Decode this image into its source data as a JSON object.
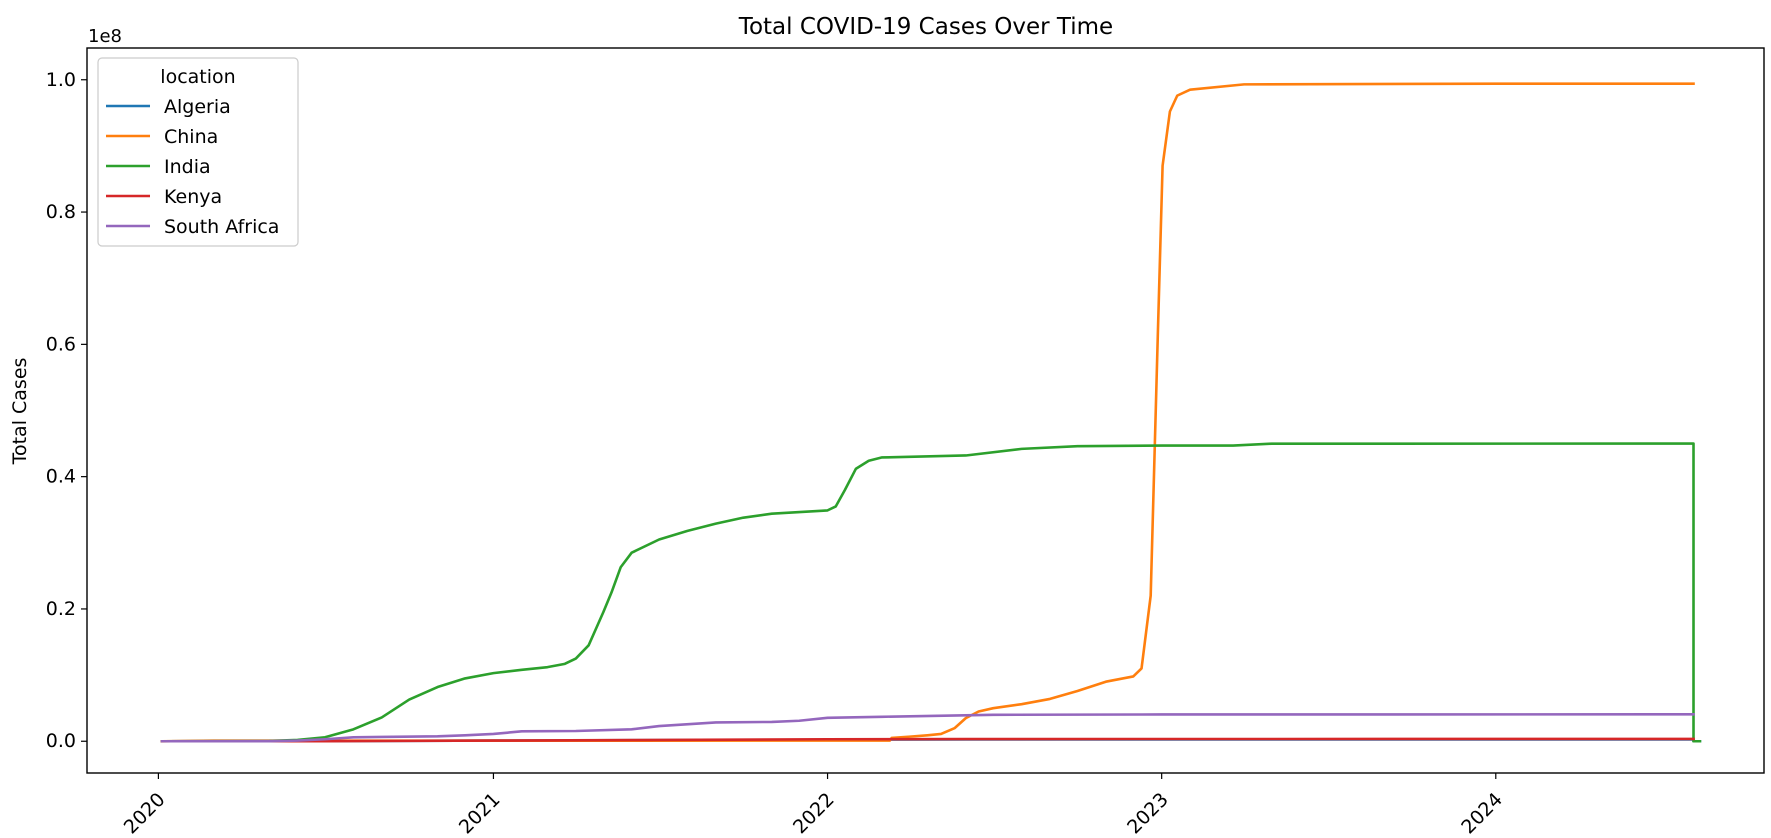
{
  "chart_data": {
    "type": "line",
    "title": "Total COVID-19 Cases Over Time",
    "xlabel": "",
    "ylabel": "Total Cases",
    "y_offset_label": "1e8",
    "x_tick_labels": [
      "2020",
      "2021",
      "2022",
      "2023",
      "2024"
    ],
    "y_tick_labels": [
      "0.0",
      "0.2",
      "0.4",
      "0.6",
      "0.8",
      "1.0"
    ],
    "y_ticks": [
      0,
      20000000,
      40000000,
      60000000,
      80000000,
      100000000
    ],
    "x_ticks": [
      "2020-01-01",
      "2021-01-01",
      "2022-01-01",
      "2023-01-01",
      "2024-01-01"
    ],
    "xlim": [
      "2019-10-15",
      "2024-10-20"
    ],
    "ylim": [
      -4800000,
      104800000
    ],
    "grid": false,
    "legend": {
      "title": "location",
      "placement": "top-left"
    },
    "series": [
      {
        "name": "Algeria",
        "color": "#1f77b4",
        "points": [
          [
            "2020-01-05",
            0
          ],
          [
            "2020-06-01",
            10000
          ],
          [
            "2021-01-01",
            100000
          ],
          [
            "2022-01-01",
            230000
          ],
          [
            "2022-06-01",
            266000
          ],
          [
            "2023-01-01",
            271000
          ],
          [
            "2024-08-04",
            272000
          ],
          [
            "2024-08-04",
            0
          ],
          [
            "2024-08-11",
            0
          ]
        ]
      },
      {
        "name": "China",
        "color": "#ff7f0e",
        "points": [
          [
            "2020-01-05",
            0
          ],
          [
            "2020-03-01",
            80000
          ],
          [
            "2022-03-10",
            100000
          ],
          [
            "2022-03-12",
            500000
          ],
          [
            "2022-04-01",
            700000
          ],
          [
            "2022-04-20",
            900000
          ],
          [
            "2022-05-05",
            1100000
          ],
          [
            "2022-05-20",
            2000000
          ],
          [
            "2022-06-01",
            3500000
          ],
          [
            "2022-06-15",
            4500000
          ],
          [
            "2022-07-01",
            5000000
          ],
          [
            "2022-08-01",
            5600000
          ],
          [
            "2022-09-01",
            6400000
          ],
          [
            "2022-10-01",
            7600000
          ],
          [
            "2022-11-01",
            9000000
          ],
          [
            "2022-12-01",
            9800000
          ],
          [
            "2022-12-10",
            11000000
          ],
          [
            "2022-12-20",
            22000000
          ],
          [
            "2022-12-28",
            62500000
          ],
          [
            "2023-01-02",
            87000000
          ],
          [
            "2023-01-10",
            95200000
          ],
          [
            "2023-01-18",
            97600000
          ],
          [
            "2023-02-01",
            98500000
          ],
          [
            "2023-04-01",
            99300000
          ],
          [
            "2024-01-01",
            99400000
          ],
          [
            "2024-08-04",
            99400000
          ]
        ]
      },
      {
        "name": "India",
        "color": "#2ca02c",
        "points": [
          [
            "2020-01-05",
            0
          ],
          [
            "2020-05-01",
            40000
          ],
          [
            "2020-06-01",
            200000
          ],
          [
            "2020-07-01",
            600000
          ],
          [
            "2020-08-01",
            1800000
          ],
          [
            "2020-09-01",
            3600000
          ],
          [
            "2020-10-01",
            6300000
          ],
          [
            "2020-11-01",
            8200000
          ],
          [
            "2020-12-01",
            9500000
          ],
          [
            "2021-01-01",
            10300000
          ],
          [
            "2021-02-01",
            10800000
          ],
          [
            "2021-03-01",
            11200000
          ],
          [
            "2021-03-20",
            11700000
          ],
          [
            "2021-04-01",
            12500000
          ],
          [
            "2021-04-15",
            14500000
          ],
          [
            "2021-05-01",
            19500000
          ],
          [
            "2021-05-10",
            22500000
          ],
          [
            "2021-05-20",
            26300000
          ],
          [
            "2021-06-01",
            28500000
          ],
          [
            "2021-07-01",
            30500000
          ],
          [
            "2021-08-01",
            31800000
          ],
          [
            "2021-09-01",
            32900000
          ],
          [
            "2021-10-01",
            33800000
          ],
          [
            "2021-11-01",
            34400000
          ],
          [
            "2022-01-01",
            34900000
          ],
          [
            "2022-01-10",
            35500000
          ],
          [
            "2022-01-20",
            38000000
          ],
          [
            "2022-02-01",
            41200000
          ],
          [
            "2022-02-15",
            42400000
          ],
          [
            "2022-03-01",
            42900000
          ],
          [
            "2022-06-01",
            43200000
          ],
          [
            "2022-08-01",
            44200000
          ],
          [
            "2022-10-01",
            44600000
          ],
          [
            "2023-01-01",
            44700000
          ],
          [
            "2023-03-20",
            44700000
          ],
          [
            "2023-05-01",
            44980000
          ],
          [
            "2024-08-04",
            45000000
          ],
          [
            "2024-08-04",
            0
          ],
          [
            "2024-08-11",
            0
          ]
        ]
      },
      {
        "name": "Kenya",
        "color": "#d62728",
        "points": [
          [
            "2020-01-05",
            0
          ],
          [
            "2020-07-01",
            5000
          ],
          [
            "2021-01-01",
            100000
          ],
          [
            "2021-06-01",
            180000
          ],
          [
            "2022-01-01",
            300000
          ],
          [
            "2022-06-01",
            330000
          ],
          [
            "2023-01-01",
            340000
          ],
          [
            "2024-08-04",
            344000
          ]
        ]
      },
      {
        "name": "South Africa",
        "color": "#9467bd",
        "points": [
          [
            "2020-01-05",
            0
          ],
          [
            "2020-05-01",
            10000
          ],
          [
            "2020-06-01",
            100000
          ],
          [
            "2020-07-01",
            300000
          ],
          [
            "2020-08-01",
            600000
          ],
          [
            "2020-09-01",
            650000
          ],
          [
            "2020-11-01",
            750000
          ],
          [
            "2020-12-01",
            900000
          ],
          [
            "2021-01-01",
            1100000
          ],
          [
            "2021-02-01",
            1500000
          ],
          [
            "2021-04-01",
            1550000
          ],
          [
            "2021-06-01",
            1800000
          ],
          [
            "2021-07-01",
            2300000
          ],
          [
            "2021-09-01",
            2850000
          ],
          [
            "2021-11-01",
            2920000
          ],
          [
            "2021-12-01",
            3100000
          ],
          [
            "2022-01-01",
            3550000
          ],
          [
            "2022-03-01",
            3700000
          ],
          [
            "2022-05-01",
            3850000
          ],
          [
            "2022-07-01",
            4000000
          ],
          [
            "2023-01-01",
            4050000
          ],
          [
            "2024-08-04",
            4070000
          ]
        ]
      }
    ]
  }
}
